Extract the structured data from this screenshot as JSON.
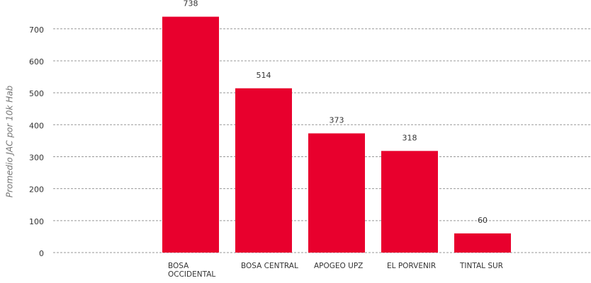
{
  "chart_data": {
    "type": "bar",
    "y_label": "Promedio JAC por 10k Hab",
    "categories": [
      "BOSA OCCIDENTAL",
      "BOSA CENTRAL",
      "APOGEO UPZ",
      "EL PORVENIR",
      "TINTAL SUR"
    ],
    "values": [
      738,
      514,
      373,
      318,
      60
    ],
    "color": "#e8002d",
    "ylim": [
      0,
      800
    ],
    "yticks": [
      0,
      100,
      200,
      300,
      400,
      500,
      600,
      700
    ],
    "grid": true
  }
}
